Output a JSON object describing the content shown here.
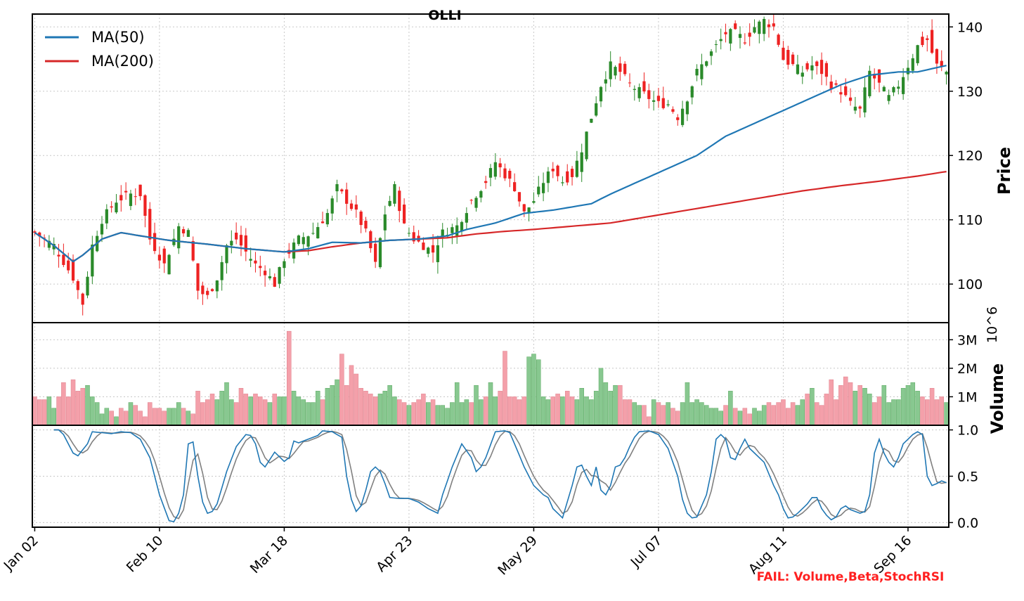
{
  "chart_data": {
    "type": "candlestick",
    "title": "OLLI",
    "x_tick_labels": [
      "Jan 02",
      "Feb 10",
      "Mar 18",
      "Apr 23",
      "May 29",
      "Jul 07",
      "Aug 11",
      "Sep 16"
    ],
    "x_tick_index": [
      0,
      26,
      52,
      78,
      104,
      130,
      156,
      182
    ],
    "n_sessions": 191,
    "price_panel": {
      "ylabel": "Price",
      "ylim": [
        94,
        142
      ],
      "yticks": [
        100,
        110,
        120,
        130,
        140
      ],
      "legend": [
        {
          "name": "MA(50)",
          "color": "#1f77b4"
        },
        {
          "name": "MA(200)",
          "color": "#d62728"
        }
      ],
      "legend_position": "upper-left",
      "up_color": "#2a8a2a",
      "down_color": "#ee2222",
      "close_keyframes": [
        [
          0,
          108
        ],
        [
          4,
          106
        ],
        [
          8,
          101
        ],
        [
          10,
          97
        ],
        [
          12,
          106
        ],
        [
          14,
          110
        ],
        [
          17,
          113
        ],
        [
          20,
          114
        ],
        [
          22,
          114
        ],
        [
          24,
          107
        ],
        [
          27,
          103
        ],
        [
          30,
          109
        ],
        [
          32,
          108
        ],
        [
          34,
          99
        ],
        [
          36,
          98
        ],
        [
          38,
          101
        ],
        [
          40,
          106
        ],
        [
          42,
          107
        ],
        [
          44,
          105
        ],
        [
          46,
          103
        ],
        [
          48,
          102
        ],
        [
          50,
          100
        ],
        [
          52,
          104
        ],
        [
          55,
          107
        ],
        [
          58,
          108
        ],
        [
          61,
          111
        ],
        [
          63,
          115
        ],
        [
          65,
          113
        ],
        [
          67,
          111
        ],
        [
          69,
          108
        ],
        [
          71,
          103
        ],
        [
          73,
          111
        ],
        [
          75,
          115
        ],
        [
          77,
          109
        ],
        [
          79,
          107
        ],
        [
          81,
          106
        ],
        [
          83,
          105
        ],
        [
          85,
          108
        ],
        [
          88,
          109
        ],
        [
          91,
          113
        ],
        [
          94,
          116
        ],
        [
          96,
          119
        ],
        [
          98,
          117
        ],
        [
          100,
          115
        ],
        [
          102,
          111
        ],
        [
          104,
          113
        ],
        [
          106,
          116
        ],
        [
          108,
          118
        ],
        [
          110,
          116
        ],
        [
          112,
          117
        ],
        [
          114,
          121
        ],
        [
          116,
          126
        ],
        [
          118,
          131
        ],
        [
          120,
          134
        ],
        [
          122,
          133
        ],
        [
          124,
          131
        ],
        [
          126,
          130
        ],
        [
          128,
          129
        ],
        [
          130,
          128
        ],
        [
          132,
          128
        ],
        [
          134,
          126
        ],
        [
          136,
          129
        ],
        [
          138,
          133
        ],
        [
          140,
          135
        ],
        [
          142,
          137
        ],
        [
          144,
          139
        ],
        [
          146,
          139
        ],
        [
          148,
          138
        ],
        [
          150,
          140
        ],
        [
          152,
          141
        ],
        [
          154,
          140
        ],
        [
          156,
          135
        ],
        [
          158,
          134
        ],
        [
          160,
          133
        ],
        [
          162,
          134
        ],
        [
          164,
          133
        ],
        [
          166,
          131
        ],
        [
          168,
          130
        ],
        [
          170,
          128
        ],
        [
          172,
          127
        ],
        [
          174,
          133
        ],
        [
          176,
          131
        ],
        [
          178,
          129
        ],
        [
          180,
          131
        ],
        [
          182,
          134
        ],
        [
          184,
          137
        ],
        [
          186,
          138
        ],
        [
          188,
          134
        ],
        [
          190,
          133
        ]
      ],
      "ma50_keyframes": [
        [
          0,
          108
        ],
        [
          4,
          106
        ],
        [
          8,
          103.5
        ],
        [
          10,
          104.5
        ],
        [
          14,
          107
        ],
        [
          18,
          108
        ],
        [
          22,
          107.5
        ],
        [
          28,
          106.8
        ],
        [
          36,
          106.2
        ],
        [
          44,
          105.5
        ],
        [
          52,
          105
        ],
        [
          57,
          105.5
        ],
        [
          62,
          106.5
        ],
        [
          68,
          106.4
        ],
        [
          74,
          106.8
        ],
        [
          80,
          107
        ],
        [
          86,
          107.5
        ],
        [
          90,
          108.5
        ],
        [
          96,
          109.5
        ],
        [
          102,
          111
        ],
        [
          108,
          111.5
        ],
        [
          112,
          112
        ],
        [
          116,
          112.5
        ],
        [
          120,
          114
        ],
        [
          126,
          116
        ],
        [
          132,
          118
        ],
        [
          138,
          120
        ],
        [
          144,
          123
        ],
        [
          150,
          125
        ],
        [
          156,
          127
        ],
        [
          162,
          129
        ],
        [
          168,
          131
        ],
        [
          174,
          132.5
        ],
        [
          180,
          133
        ],
        [
          184,
          133
        ],
        [
          190,
          134
        ]
      ],
      "ma200_keyframes": [
        [
          0,
          108
        ],
        [
          4,
          106
        ],
        [
          8,
          103.5
        ],
        [
          10,
          104.5
        ],
        [
          14,
          107
        ],
        [
          18,
          108
        ],
        [
          22,
          107.5
        ],
        [
          28,
          106.8
        ],
        [
          36,
          106.2
        ],
        [
          44,
          105.5
        ],
        [
          52,
          105
        ],
        [
          57,
          105.2
        ],
        [
          62,
          105.8
        ],
        [
          68,
          106.4
        ],
        [
          74,
          106.8
        ],
        [
          80,
          107
        ],
        [
          86,
          107.2
        ],
        [
          92,
          107.8
        ],
        [
          98,
          108.2
        ],
        [
          104,
          108.5
        ],
        [
          112,
          109
        ],
        [
          120,
          109.5
        ],
        [
          128,
          110.5
        ],
        [
          136,
          111.5
        ],
        [
          144,
          112.5
        ],
        [
          152,
          113.5
        ],
        [
          160,
          114.5
        ],
        [
          168,
          115.3
        ],
        [
          176,
          116
        ],
        [
          184,
          116.8
        ],
        [
          190,
          117.5
        ]
      ]
    },
    "volume_panel": {
      "ylabel": "Volume",
      "exponent_label": "10^6",
      "ylim": [
        0,
        3.6
      ],
      "yticks": [
        "1M",
        "2M",
        "3M"
      ],
      "ytick_values": [
        1,
        2,
        3
      ],
      "up_color": "#88c890",
      "down_color": "#f4a0aa",
      "values": [
        1.0,
        0.9,
        0.9,
        1.0,
        0.6,
        1.0,
        1.5,
        1.0,
        1.6,
        1.2,
        1.3,
        1.4,
        1.0,
        0.8,
        0.4,
        0.6,
        0.5,
        0.3,
        0.6,
        0.5,
        0.8,
        0.7,
        0.5,
        0.3,
        0.8,
        0.6,
        0.6,
        0.5,
        0.6,
        0.6,
        0.8,
        0.6,
        0.5,
        0.4,
        1.2,
        0.8,
        0.9,
        1.1,
        0.9,
        1.2,
        1.5,
        0.9,
        0.8,
        1.3,
        1.1,
        1.0,
        1.1,
        1.0,
        0.9,
        0.8,
        1.1,
        1.0,
        1.0,
        3.3,
        1.2,
        1.0,
        0.9,
        0.8,
        0.8,
        1.2,
        0.9,
        1.3,
        1.4,
        1.6,
        2.5,
        1.4,
        2.1,
        1.8,
        1.3,
        1.2,
        1.1,
        1.0,
        1.1,
        1.2,
        1.4,
        1.0,
        0.9,
        0.8,
        0.7,
        0.8,
        0.9,
        1.1,
        0.8,
        0.9,
        0.7,
        0.7,
        0.6,
        0.8,
        1.5,
        0.8,
        0.9,
        0.8,
        1.4,
        0.9,
        1.0,
        1.5,
        1.0,
        1.2,
        2.6,
        1.0,
        1.0,
        0.9,
        1.0,
        2.4,
        2.5,
        2.3,
        1.0,
        0.9,
        1.0,
        1.1,
        1.0,
        1.2,
        1.0,
        0.9,
        1.3,
        1.0,
        0.9,
        1.2,
        2.0,
        1.5,
        1.2,
        1.4,
        1.4,
        0.9,
        0.9,
        0.8,
        0.7,
        0.7,
        0.3,
        0.9,
        0.8,
        0.7,
        0.8,
        0.6,
        0.5,
        0.8,
        1.5,
        0.8,
        0.9,
        0.8,
        0.7,
        0.6,
        0.6,
        0.5,
        0.7,
        1.2,
        0.6,
        0.5,
        0.6,
        0.4,
        0.6,
        0.5,
        0.7,
        0.8,
        0.7,
        0.8,
        0.9,
        0.6,
        0.8,
        0.7,
        0.9,
        1.1,
        1.3,
        0.8,
        0.7,
        1.1,
        1.6,
        0.9,
        1.4,
        1.7,
        1.5,
        1.2,
        1.4,
        1.3,
        1.1,
        0.8,
        1.0,
        1.4,
        0.8,
        0.9,
        0.9,
        1.3,
        1.4,
        1.5,
        1.2,
        1.0,
        0.9,
        1.3,
        0.9,
        1.0,
        0.8,
        0.9,
        1.0
      ]
    },
    "stochrsi_panel": {
      "ylim": [
        -0.05,
        1.05
      ],
      "yticks": [
        "0.0",
        "0.5",
        "1.0"
      ],
      "ytick_values": [
        0,
        0.5,
        1
      ],
      "k_color": "#1f77b4",
      "d_color": "#808080",
      "k_keyframes": [
        [
          4,
          1.0
        ],
        [
          5,
          1.0
        ],
        [
          6,
          0.95
        ],
        [
          8,
          0.75
        ],
        [
          9,
          0.72
        ],
        [
          11,
          0.85
        ],
        [
          12,
          0.98
        ],
        [
          14,
          0.97
        ],
        [
          16,
          0.96
        ],
        [
          18,
          0.98
        ],
        [
          20,
          0.97
        ],
        [
          22,
          0.9
        ],
        [
          24,
          0.7
        ],
        [
          26,
          0.3
        ],
        [
          28,
          0.02
        ],
        [
          29,
          0.01
        ],
        [
          30,
          0.1
        ],
        [
          31,
          0.3
        ],
        [
          32,
          0.85
        ],
        [
          33,
          0.87
        ],
        [
          34,
          0.5
        ],
        [
          35,
          0.22
        ],
        [
          36,
          0.1
        ],
        [
          37,
          0.12
        ],
        [
          38,
          0.2
        ],
        [
          40,
          0.55
        ],
        [
          42,
          0.82
        ],
        [
          44,
          0.95
        ],
        [
          45,
          0.94
        ],
        [
          46,
          0.85
        ],
        [
          47,
          0.65
        ],
        [
          48,
          0.6
        ],
        [
          50,
          0.76
        ],
        [
          52,
          0.66
        ],
        [
          53,
          0.7
        ],
        [
          54,
          0.88
        ],
        [
          55,
          0.86
        ],
        [
          57,
          0.9
        ],
        [
          59,
          0.94
        ],
        [
          60,
          0.99
        ],
        [
          62,
          0.98
        ],
        [
          64,
          0.92
        ],
        [
          65,
          0.5
        ],
        [
          66,
          0.25
        ],
        [
          67,
          0.12
        ],
        [
          68,
          0.18
        ],
        [
          69,
          0.35
        ],
        [
          70,
          0.55
        ],
        [
          71,
          0.6
        ],
        [
          72,
          0.55
        ],
        [
          73,
          0.42
        ],
        [
          74,
          0.27
        ],
        [
          76,
          0.26
        ],
        [
          78,
          0.26
        ],
        [
          80,
          0.22
        ],
        [
          82,
          0.15
        ],
        [
          84,
          0.1
        ],
        [
          85,
          0.3
        ],
        [
          87,
          0.6
        ],
        [
          89,
          0.85
        ],
        [
          91,
          0.7
        ],
        [
          92,
          0.55
        ],
        [
          93,
          0.6
        ],
        [
          94,
          0.7
        ],
        [
          96,
          0.98
        ],
        [
          98,
          0.99
        ],
        [
          99,
          0.97
        ],
        [
          100,
          0.85
        ],
        [
          102,
          0.6
        ],
        [
          104,
          0.4
        ],
        [
          106,
          0.3
        ],
        [
          107,
          0.27
        ],
        [
          108,
          0.15
        ],
        [
          110,
          0.05
        ],
        [
          112,
          0.4
        ],
        [
          113,
          0.6
        ],
        [
          114,
          0.62
        ],
        [
          115,
          0.5
        ],
        [
          116,
          0.4
        ],
        [
          117,
          0.6
        ],
        [
          118,
          0.35
        ],
        [
          119,
          0.3
        ],
        [
          120,
          0.4
        ],
        [
          121,
          0.6
        ],
        [
          122,
          0.62
        ],
        [
          123,
          0.7
        ],
        [
          124,
          0.82
        ],
        [
          125,
          0.92
        ],
        [
          126,
          0.98
        ],
        [
          128,
          0.99
        ],
        [
          130,
          0.95
        ],
        [
          132,
          0.8
        ],
        [
          134,
          0.5
        ],
        [
          135,
          0.25
        ],
        [
          136,
          0.1
        ],
        [
          137,
          0.05
        ],
        [
          138,
          0.06
        ],
        [
          140,
          0.3
        ],
        [
          141,
          0.55
        ],
        [
          142,
          0.9
        ],
        [
          143,
          0.95
        ],
        [
          144,
          0.9
        ],
        [
          145,
          0.7
        ],
        [
          146,
          0.68
        ],
        [
          147,
          0.8
        ],
        [
          148,
          0.9
        ],
        [
          149,
          0.8
        ],
        [
          150,
          0.75
        ],
        [
          152,
          0.65
        ],
        [
          154,
          0.4
        ],
        [
          155,
          0.3
        ],
        [
          156,
          0.15
        ],
        [
          157,
          0.05
        ],
        [
          158,
          0.06
        ],
        [
          159,
          0.1
        ],
        [
          160,
          0.15
        ],
        [
          161,
          0.2
        ],
        [
          162,
          0.27
        ],
        [
          163,
          0.27
        ],
        [
          164,
          0.15
        ],
        [
          165,
          0.08
        ],
        [
          166,
          0.03
        ],
        [
          167,
          0.06
        ],
        [
          168,
          0.15
        ],
        [
          169,
          0.18
        ],
        [
          170,
          0.14
        ],
        [
          172,
          0.1
        ],
        [
          173,
          0.12
        ],
        [
          174,
          0.3
        ],
        [
          175,
          0.75
        ],
        [
          176,
          0.9
        ],
        [
          177,
          0.75
        ],
        [
          178,
          0.65
        ],
        [
          179,
          0.6
        ],
        [
          180,
          0.7
        ],
        [
          181,
          0.85
        ],
        [
          182,
          0.9
        ],
        [
          183,
          0.95
        ],
        [
          184,
          0.98
        ],
        [
          185,
          0.95
        ],
        [
          186,
          0.5
        ],
        [
          187,
          0.4
        ],
        [
          188,
          0.42
        ],
        [
          189,
          0.45
        ],
        [
          190,
          0.43
        ]
      ],
      "d_lag": 1
    },
    "annotation": "FAIL: Volume,Beta,StochRSI"
  }
}
